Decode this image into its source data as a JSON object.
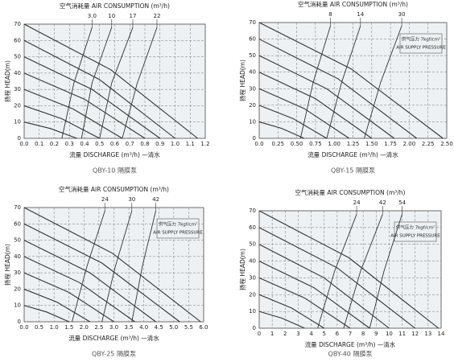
{
  "chart_data": [
    {
      "type": "line",
      "title": "空气消耗量 AIR CONSUMPTION (m³/h)",
      "xlabel": "流量 DISCHARGE (m³/h) —清水",
      "ylabel": "扬程 HEAD(m)",
      "caption": "QBY-10 隔膜泵",
      "xlim": [
        0,
        1.2
      ],
      "ylim": [
        0,
        70
      ],
      "xticks": [
        {
          "value": 0,
          "label": "0.0"
        },
        0.1,
        0.2,
        0.3,
        0.4,
        0.5,
        0.6,
        0.7,
        0.8,
        0.9,
        {
          "value": 1,
          "label": "1.0"
        },
        1.1,
        1.2
      ],
      "yticks": [
        0,
        10,
        20,
        30,
        40,
        50,
        60,
        70
      ],
      "grid": true,
      "color": "#333333",
      "series": [
        {
          "x": [
            0,
            0.175,
            0.35
          ],
          "values": [
            10,
            6,
            0
          ]
        },
        {
          "x": [
            0,
            0.25,
            0.5
          ],
          "values": [
            20,
            12,
            0
          ]
        },
        {
          "x": [
            0,
            0.325,
            0.65
          ],
          "values": [
            30,
            18,
            0
          ]
        },
        {
          "x": [
            0,
            0.4,
            0.8
          ],
          "values": [
            40,
            24,
            0
          ]
        },
        {
          "x": [
            0,
            0.45,
            0.9
          ],
          "values": [
            50,
            30,
            0
          ]
        },
        {
          "x": [
            0,
            0.5,
            1
          ],
          "values": [
            60,
            36,
            0
          ]
        },
        {
          "x": [
            0,
            0.575,
            1.15
          ],
          "values": [
            70,
            42,
            0
          ]
        },
        {
          "name": "3.0",
          "x": [
            0.45,
            0.33,
            0.25
          ],
          "values": [
            68,
            34,
            0
          ]
        },
        {
          "name": "10",
          "x": [
            0.58,
            0.45,
            0.38
          ],
          "values": [
            68,
            34,
            0
          ]
        },
        {
          "name": "17",
          "x": [
            0.72,
            0.58,
            0.5
          ],
          "values": [
            68,
            34,
            0
          ]
        },
        {
          "name": "22",
          "x": [
            0.88,
            0.75,
            0.65
          ],
          "values": [
            68,
            34,
            0
          ]
        }
      ]
    },
    {
      "type": "line",
      "title": "空气消耗量 AIR CONSUMPTION (m³/h)",
      "xlabel": "流量 DISCHARGE (m³/h) —清水",
      "ylabel": "扬程 HEAD(m)",
      "caption": "QBY-15 隔膜泵",
      "annotation_lines": [
        "供气压力 7kgf/cm²",
        "AIR SUPPLY PRESSURE"
      ],
      "xlim": [
        0,
        2.5
      ],
      "ylim": [
        0,
        70
      ],
      "xticks": [
        {
          "value": 0,
          "label": "0.0"
        },
        0.25,
        {
          "value": 0.5,
          "label": "0.50"
        },
        0.75,
        {
          "value": 1,
          "label": "1.00"
        },
        1.25,
        {
          "value": 1.5,
          "label": "1.50"
        },
        1.75,
        {
          "value": 2,
          "label": "2.00"
        },
        2.25,
        {
          "value": 2.5,
          "label": "2.50"
        }
      ],
      "yticks": [
        0,
        10,
        20,
        30,
        40,
        50,
        60,
        70
      ],
      "grid": true,
      "color": "#333333",
      "series": [
        {
          "x": [
            0,
            0.3,
            0.6
          ],
          "values": [
            10,
            6,
            0
          ]
        },
        {
          "x": [
            0,
            0.45,
            0.9
          ],
          "values": [
            20,
            12,
            0
          ]
        },
        {
          "x": [
            0,
            0.6,
            1.2
          ],
          "values": [
            30,
            18,
            0
          ]
        },
        {
          "x": [
            0,
            0.75,
            1.5
          ],
          "values": [
            40,
            24,
            0
          ]
        },
        {
          "x": [
            0,
            0.9,
            1.8
          ],
          "values": [
            50,
            30,
            0
          ]
        },
        {
          "x": [
            0,
            1.05,
            2.1
          ],
          "values": [
            60,
            36,
            0
          ]
        },
        {
          "x": [
            0,
            1.225,
            2.45
          ],
          "values": [
            70,
            42,
            0
          ]
        },
        {
          "name": "8",
          "x": [
            0.95,
            0.72,
            0.55
          ],
          "values": [
            68,
            34,
            0
          ]
        },
        {
          "name": "14",
          "x": [
            1.35,
            1.1,
            0.9
          ],
          "values": [
            68,
            34,
            0
          ]
        },
        {
          "name": "30",
          "x": [
            1.9,
            1.62,
            1.4
          ],
          "values": [
            68,
            34,
            0
          ]
        }
      ]
    },
    {
      "type": "line",
      "title": "空气消耗量 AIR CONSUMPTION (m³/h)",
      "xlabel": "流量 DISCHARGE (m³/h) —清水",
      "ylabel": "扬程 HEAD(m)",
      "caption": "QBY-25 隔膜泵",
      "annotation_lines": [
        "供气压力 7kgf/cm²",
        "AIR SUPPLY PRESSURE"
      ],
      "xlim": [
        0,
        6
      ],
      "ylim": [
        0,
        70
      ],
      "xticks": [
        {
          "value": 0,
          "label": "0.0"
        },
        0.5,
        {
          "value": 1,
          "label": "1.0"
        },
        1.5,
        {
          "value": 2,
          "label": "2.0"
        },
        2.5,
        {
          "value": 3,
          "label": "3.0"
        },
        3.5,
        {
          "value": 4,
          "label": "4.0"
        },
        4.5,
        {
          "value": 5,
          "label": "5.0"
        },
        5.5,
        {
          "value": 6,
          "label": "6.0"
        }
      ],
      "yticks": [
        0,
        10,
        20,
        30,
        40,
        50,
        60,
        70
      ],
      "grid": true,
      "color": "#333333",
      "series": [
        {
          "x": [
            0,
            0.75,
            1.5
          ],
          "values": [
            10,
            6,
            0
          ]
        },
        {
          "x": [
            0,
            1.1,
            2.2
          ],
          "values": [
            20,
            12,
            0
          ]
        },
        {
          "x": [
            0,
            1.5,
            3
          ],
          "values": [
            30,
            18,
            0
          ]
        },
        {
          "x": [
            0,
            1.85,
            3.7
          ],
          "values": [
            40,
            24,
            0
          ]
        },
        {
          "x": [
            0,
            2.2,
            4.4
          ],
          "values": [
            50,
            30,
            0
          ]
        },
        {
          "x": [
            0,
            2.6,
            5.2
          ],
          "values": [
            60,
            36,
            0
          ]
        },
        {
          "x": [
            0,
            2.95,
            5.9
          ],
          "values": [
            70,
            42,
            0
          ]
        },
        {
          "name": "24",
          "x": [
            2.7,
            2.1,
            1.6
          ],
          "values": [
            68,
            34,
            0
          ]
        },
        {
          "name": "30",
          "x": [
            3.6,
            3.05,
            2.6
          ],
          "values": [
            68,
            34,
            0
          ]
        },
        {
          "name": "42",
          "x": [
            4.4,
            3.95,
            3.6
          ],
          "values": [
            68,
            34,
            0
          ]
        }
      ]
    },
    {
      "type": "line",
      "title": "空气消耗量 AIR CONSUMPTION (m³/h)",
      "xlabel": "流量 DISCHARGE (m³/h) —清水",
      "ylabel": "扬程 HEAD(m)",
      "caption": "QBY-40 隔膜泵",
      "annotation_lines": [
        "供气压力 7kgf/cm²",
        "AIR SUPPLY PRESSURE"
      ],
      "xlim": [
        0,
        14
      ],
      "ylim": [
        0,
        70
      ],
      "xticks": [
        0,
        1,
        2,
        3,
        4,
        5,
        6,
        7,
        8,
        9,
        10,
        11,
        12,
        13,
        14
      ],
      "yticks": [
        0,
        10,
        20,
        30,
        40,
        50,
        60,
        70
      ],
      "grid": true,
      "color": "#333333",
      "series": [
        {
          "x": [
            0,
            1.75,
            3.5
          ],
          "values": [
            10,
            6,
            0
          ]
        },
        {
          "x": [
            0,
            2.5,
            5
          ],
          "values": [
            20,
            12,
            0
          ]
        },
        {
          "x": [
            0,
            3.5,
            7
          ],
          "values": [
            30,
            18,
            0
          ]
        },
        {
          "x": [
            0,
            4.25,
            8.5
          ],
          "values": [
            40,
            24,
            0
          ]
        },
        {
          "x": [
            0,
            5,
            10
          ],
          "values": [
            50,
            30,
            0
          ]
        },
        {
          "x": [
            0,
            6,
            12
          ],
          "values": [
            60,
            36,
            0
          ]
        },
        {
          "x": [
            0,
            6.9,
            13.8
          ],
          "values": [
            70,
            42,
            0
          ]
        },
        {
          "name": "24",
          "x": [
            7.5,
            5.8,
            4.5
          ],
          "values": [
            68,
            34,
            0
          ]
        },
        {
          "name": "42",
          "x": [
            9.5,
            7.8,
            6.5
          ],
          "values": [
            68,
            34,
            0
          ]
        },
        {
          "name": "54",
          "x": [
            11,
            9.6,
            8.5
          ],
          "values": [
            68,
            34,
            0
          ]
        }
      ]
    }
  ]
}
